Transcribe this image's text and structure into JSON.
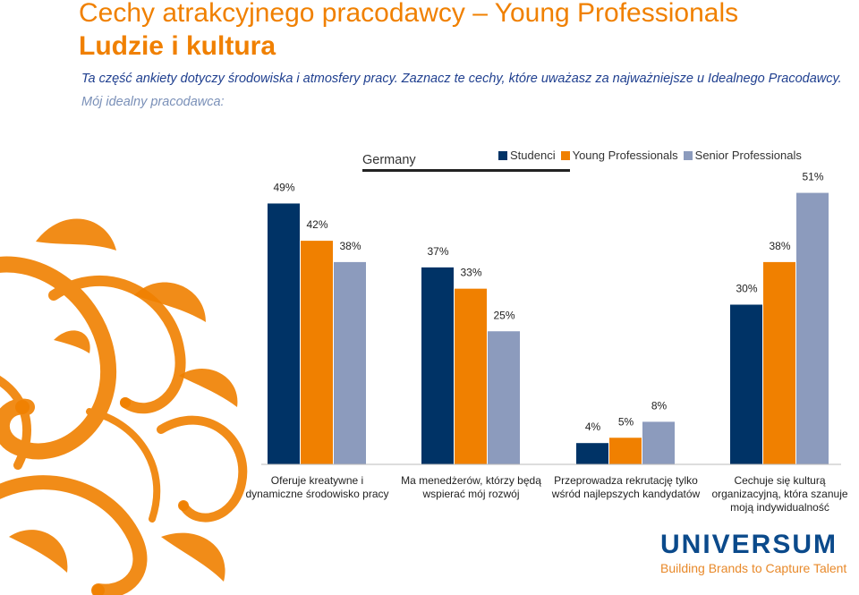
{
  "title_line1": "Cechy atrakcyjnego pracodawcy – Young Professionals",
  "title_line2": "Ludzie i kultura",
  "subtitle_line1": "Ta część ankiety dotyczy środowiska i atmosfery pracy. Zaznacz te cechy, które uważasz za najważniejsze u Idealnego Pracodawcy.",
  "subtitle_line2": "Mój idealny pracodawca:",
  "country": "Germany",
  "logo": {
    "name": "UNIVERSUM",
    "tagline": "Building Brands to Capture Talent"
  },
  "colors": {
    "series1": "#003366",
    "series2": "#f08000",
    "series3": "#8c9bbd",
    "title": "#f08000",
    "ornament": "#f08000"
  },
  "chart_data": {
    "type": "bar",
    "categories": [
      [
        "Oferuje kreatywne i",
        "dynamiczne środowisko pracy"
      ],
      [
        "Ma menedżerów, którzy będą",
        "wspierać mój rozwój"
      ],
      [
        "Przeprowadza rekrutację tylko",
        "wśród najlepszych kandydatów"
      ],
      [
        "Cechuje się kulturą",
        "organizacyjną, która szanuje",
        "moją indywidualność"
      ]
    ],
    "series": [
      {
        "name": "Studenci",
        "values": [
          49,
          37,
          4,
          30
        ],
        "labels": [
          "49%",
          "37%",
          "4%",
          "30%"
        ]
      },
      {
        "name": "Young Professionals",
        "values": [
          42,
          33,
          5,
          38
        ],
        "labels": [
          "42%",
          "33%",
          "5%",
          "38%"
        ]
      },
      {
        "name": "Senior Professionals",
        "values": [
          38,
          25,
          8,
          51
        ],
        "labels": [
          "38%",
          "25%",
          "8%",
          "51%"
        ]
      }
    ],
    "legend": "top-right",
    "grid": false
  }
}
